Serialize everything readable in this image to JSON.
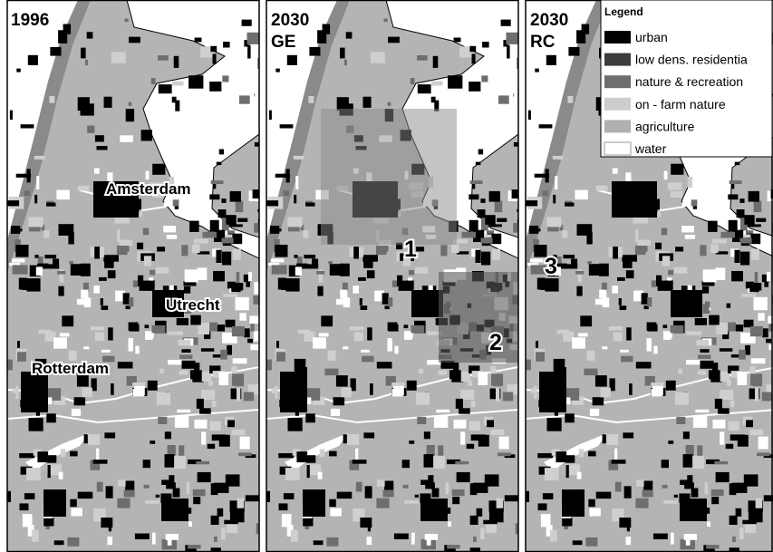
{
  "panels": [
    {
      "title_lines": [
        "1996"
      ]
    },
    {
      "title_lines": [
        "2030",
        "GE"
      ]
    },
    {
      "title_lines": [
        "2030",
        "RC"
      ]
    }
  ],
  "places": [
    "Amsterdam",
    "Utrecht",
    "Rotterdam"
  ],
  "markers": [
    "1",
    "2",
    "3"
  ],
  "legend": {
    "title": "Legend",
    "items": [
      "urban",
      "low dens. residentia",
      "nature & recreation",
      "on - farm nature",
      "agriculture",
      "water"
    ]
  }
}
